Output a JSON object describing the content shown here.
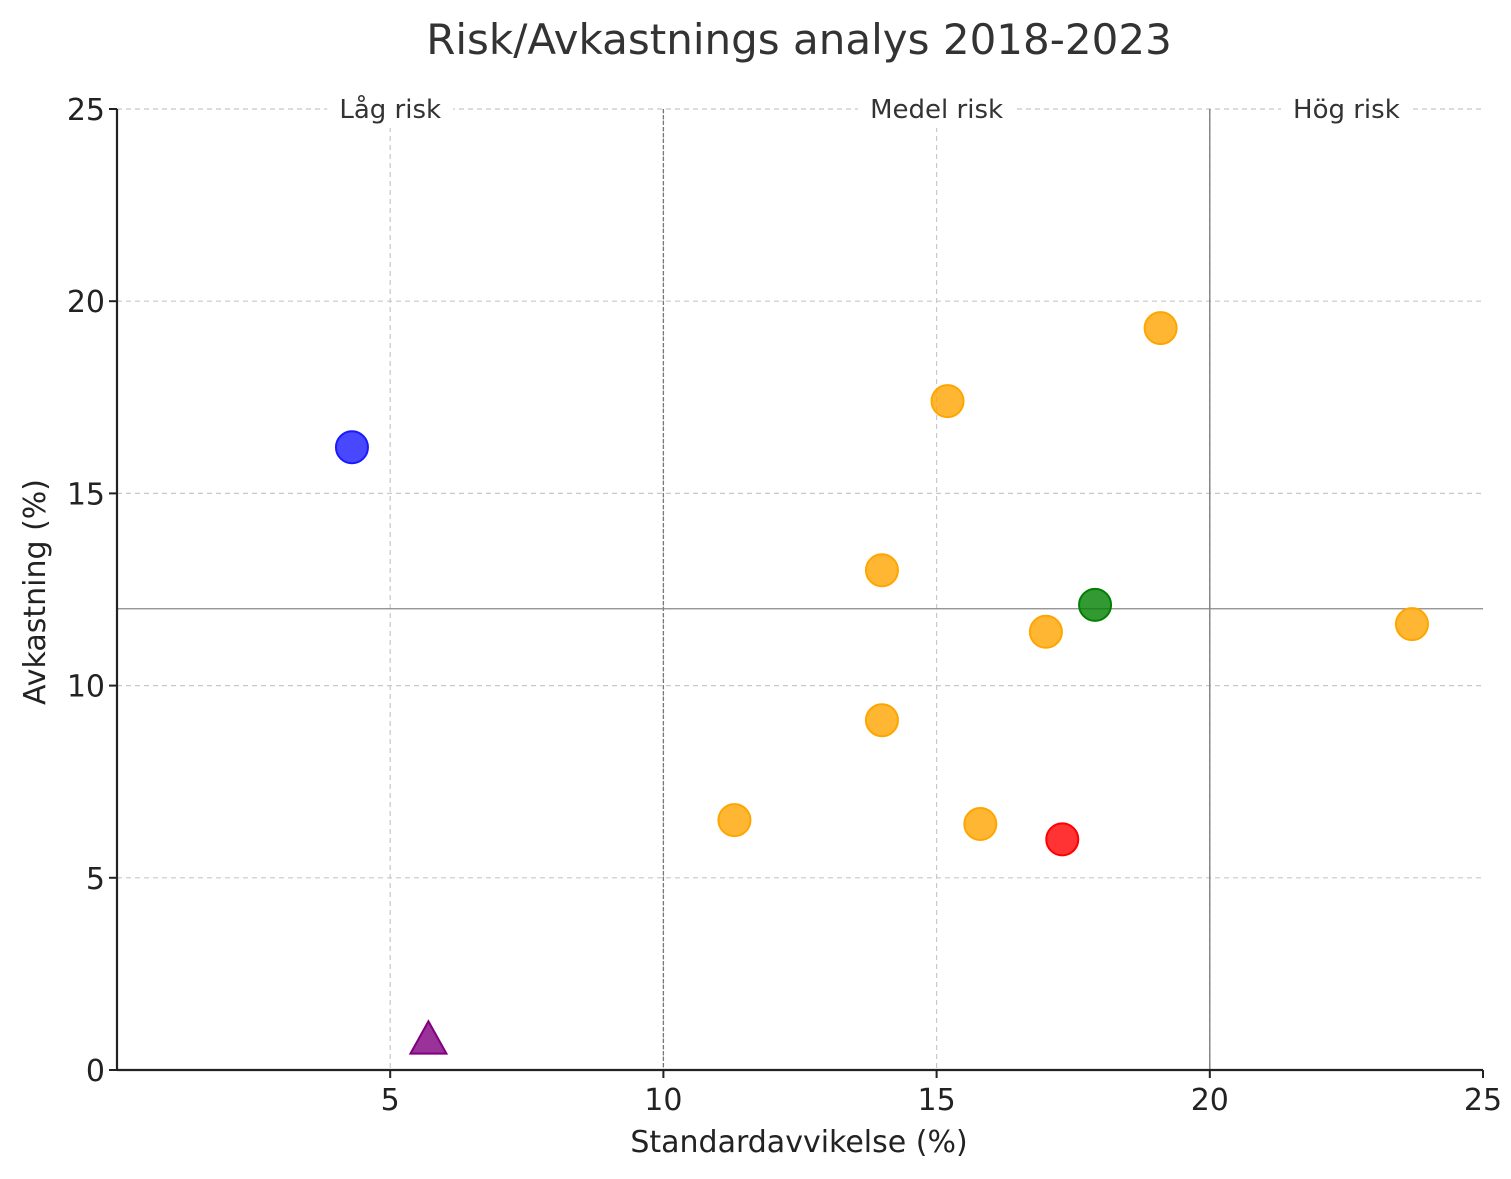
{
  "chart_data": {
    "type": "scatter",
    "title": "Risk/Avkastnings analys 2018-2023",
    "xlabel": "Standardavvikelse (%)",
    "ylabel": "Avkastning (%)",
    "xlim": [
      0,
      25
    ],
    "ylim": [
      0,
      25
    ],
    "xticks": [
      5,
      10,
      15,
      20,
      25
    ],
    "yticks": [
      0,
      5,
      10,
      15,
      20,
      25
    ],
    "grid": true,
    "zones": [
      {
        "label": "Låg risk",
        "x_center": 5
      },
      {
        "label": "Medel risk",
        "x_center": 15
      },
      {
        "label": "Hög risk",
        "x_center": 22.5
      }
    ],
    "vertical_lines": [
      10,
      20
    ],
    "horizontal_line": 12,
    "points": [
      {
        "x": 4.3,
        "y": 16.2,
        "color": "#1a1aff",
        "marker": "circle"
      },
      {
        "x": 5.7,
        "y": 0.8,
        "color": "#800080",
        "marker": "triangle"
      },
      {
        "x": 11.3,
        "y": 6.5,
        "color": "#ffa500",
        "marker": "circle"
      },
      {
        "x": 14.0,
        "y": 13.0,
        "color": "#ffa500",
        "marker": "circle"
      },
      {
        "x": 14.0,
        "y": 9.1,
        "color": "#ffa500",
        "marker": "circle"
      },
      {
        "x": 15.2,
        "y": 17.4,
        "color": "#ffa500",
        "marker": "circle"
      },
      {
        "x": 15.8,
        "y": 6.4,
        "color": "#ffa500",
        "marker": "circle"
      },
      {
        "x": 17.0,
        "y": 11.4,
        "color": "#ffa500",
        "marker": "circle"
      },
      {
        "x": 17.3,
        "y": 6.0,
        "color": "#ff0000",
        "marker": "circle"
      },
      {
        "x": 17.9,
        "y": 12.1,
        "color": "#008000",
        "marker": "circle"
      },
      {
        "x": 19.1,
        "y": 19.3,
        "color": "#ffa500",
        "marker": "circle"
      },
      {
        "x": 23.7,
        "y": 11.6,
        "color": "#ffa500",
        "marker": "circle"
      }
    ]
  }
}
